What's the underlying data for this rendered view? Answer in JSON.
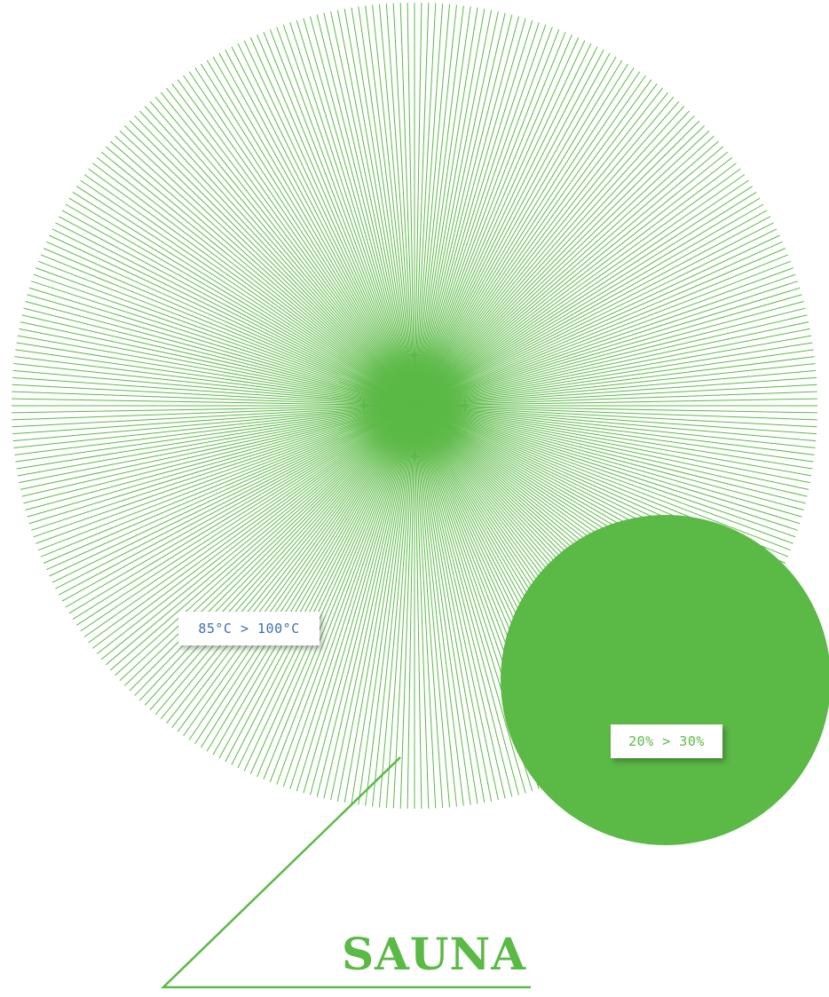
{
  "colors": {
    "green": "#5bb946",
    "blue": "#3e6fb0",
    "background": "#ffffff"
  },
  "sunburst": {
    "ray_count": 360
  },
  "labels": {
    "temperature": "85°C > 100°C",
    "humidity": "20% > 30%"
  },
  "title": "SAUNA"
}
